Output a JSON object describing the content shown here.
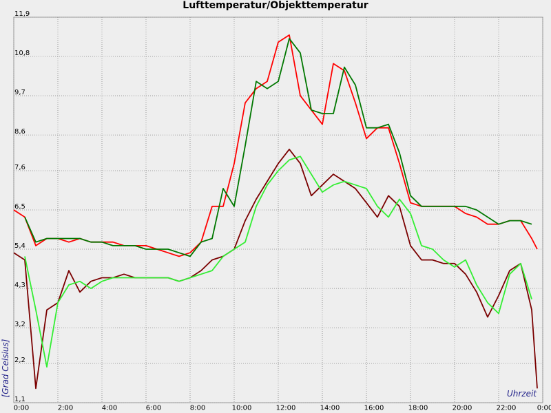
{
  "chart_data": {
    "type": "line",
    "title": "Lufttemperatur/Objekttemperatur",
    "x_label": "Uhrzeit",
    "y_label": "[Grad Celsius]",
    "xlim": [
      0,
      24
    ],
    "xticks": [
      {
        "value": 0,
        "label": "0:00"
      },
      {
        "value": 2,
        "label": "2:00"
      },
      {
        "value": 4,
        "label": "4:00"
      },
      {
        "value": 6,
        "label": "6:00"
      },
      {
        "value": 8,
        "label": "8:00"
      },
      {
        "value": 10,
        "label": "10:00"
      },
      {
        "value": 12,
        "label": "12:00"
      },
      {
        "value": 14,
        "label": "14:00"
      },
      {
        "value": 16,
        "label": "16:00"
      },
      {
        "value": 18,
        "label": "18:00"
      },
      {
        "value": 20,
        "label": "20:00"
      },
      {
        "value": 22,
        "label": "22:00"
      },
      {
        "value": 24,
        "label": "0:00"
      }
    ],
    "ylim": [
      1.1,
      11.9
    ],
    "yticks": [
      {
        "value": 1.1,
        "label": "1,1"
      },
      {
        "value": 2.2,
        "label": "2,2"
      },
      {
        "value": 3.2,
        "label": "3,2"
      },
      {
        "value": 4.3,
        "label": "4,3"
      },
      {
        "value": 5.4,
        "label": "5,4"
      },
      {
        "value": 6.5,
        "label": "6,5"
      },
      {
        "value": 7.6,
        "label": "7,6"
      },
      {
        "value": 8.6,
        "label": "8,6"
      },
      {
        "value": 9.7,
        "label": "9,7"
      },
      {
        "value": 10.8,
        "label": "10,8"
      },
      {
        "value": 11.9,
        "label": "11,9"
      }
    ],
    "grid": true,
    "x": [
      0,
      0.5,
      1,
      1.5,
      2,
      2.5,
      3,
      3.5,
      4,
      4.5,
      5,
      5.5,
      6,
      6.5,
      7,
      7.5,
      8,
      8.5,
      9,
      9.5,
      10,
      10.5,
      11,
      11.5,
      12,
      12.5,
      13,
      13.5,
      14,
      14.5,
      15,
      15.5,
      16,
      16.5,
      17,
      17.5,
      18,
      18.5,
      19,
      19.5,
      20,
      20.5,
      21,
      21.5,
      22,
      22.5,
      23,
      23.5,
      23.75
    ],
    "series": [
      {
        "color": "#ff0000",
        "values": [
          6.5,
          6.3,
          5.5,
          5.7,
          5.7,
          5.6,
          5.7,
          5.6,
          5.6,
          5.6,
          5.5,
          5.5,
          5.5,
          5.4,
          5.3,
          5.2,
          5.3,
          5.6,
          6.6,
          6.6,
          7.8,
          9.5,
          9.9,
          10.1,
          11.2,
          11.4,
          9.7,
          9.3,
          8.9,
          10.6,
          10.4,
          9.5,
          8.5,
          8.8,
          8.8,
          7.8,
          6.7,
          6.6,
          6.6,
          6.6,
          6.6,
          6.4,
          6.3,
          6.1,
          6.1,
          6.2,
          6.2,
          5.7,
          5.4
        ]
      },
      {
        "color": "#007700",
        "values": [
          null,
          6.3,
          5.6,
          5.7,
          5.7,
          5.7,
          5.7,
          5.6,
          5.6,
          5.5,
          5.5,
          5.5,
          5.4,
          5.4,
          5.4,
          5.3,
          5.2,
          5.6,
          5.7,
          7.1,
          6.6,
          8.3,
          10.1,
          9.9,
          10.1,
          11.3,
          10.9,
          9.3,
          9.2,
          9.2,
          10.5,
          10.0,
          8.8,
          8.8,
          8.9,
          8.1,
          6.9,
          6.6,
          6.6,
          6.6,
          6.6,
          6.6,
          6.5,
          6.3,
          6.1,
          6.2,
          6.2,
          6.1,
          null
        ]
      },
      {
        "color": "#7a0000",
        "values": [
          5.3,
          5.1,
          1.5,
          3.7,
          3.9,
          4.8,
          4.2,
          4.5,
          4.6,
          4.6,
          4.7,
          4.6,
          4.6,
          4.6,
          4.6,
          4.5,
          4.6,
          4.8,
          5.1,
          5.2,
          5.4,
          6.2,
          6.8,
          7.3,
          7.8,
          8.2,
          7.8,
          6.9,
          7.2,
          7.5,
          7.3,
          7.1,
          6.7,
          6.3,
          6.9,
          6.6,
          5.5,
          5.1,
          5.1,
          5.0,
          5.0,
          4.7,
          4.2,
          3.5,
          4.1,
          4.8,
          5.0,
          3.7,
          1.5
        ]
      },
      {
        "color": "#33ee33",
        "values": [
          null,
          5.2,
          3.7,
          2.1,
          3.9,
          4.4,
          4.5,
          4.3,
          4.5,
          4.6,
          4.6,
          4.6,
          4.6,
          4.6,
          4.6,
          4.5,
          4.6,
          4.7,
          4.8,
          5.2,
          5.4,
          5.6,
          6.6,
          7.2,
          7.6,
          7.9,
          8.0,
          7.5,
          7.0,
          7.2,
          7.3,
          7.2,
          7.1,
          6.6,
          6.3,
          6.8,
          6.4,
          5.5,
          5.4,
          5.1,
          4.9,
          5.1,
          4.4,
          3.9,
          3.6,
          4.7,
          5.0,
          4.0,
          null
        ]
      }
    ]
  }
}
